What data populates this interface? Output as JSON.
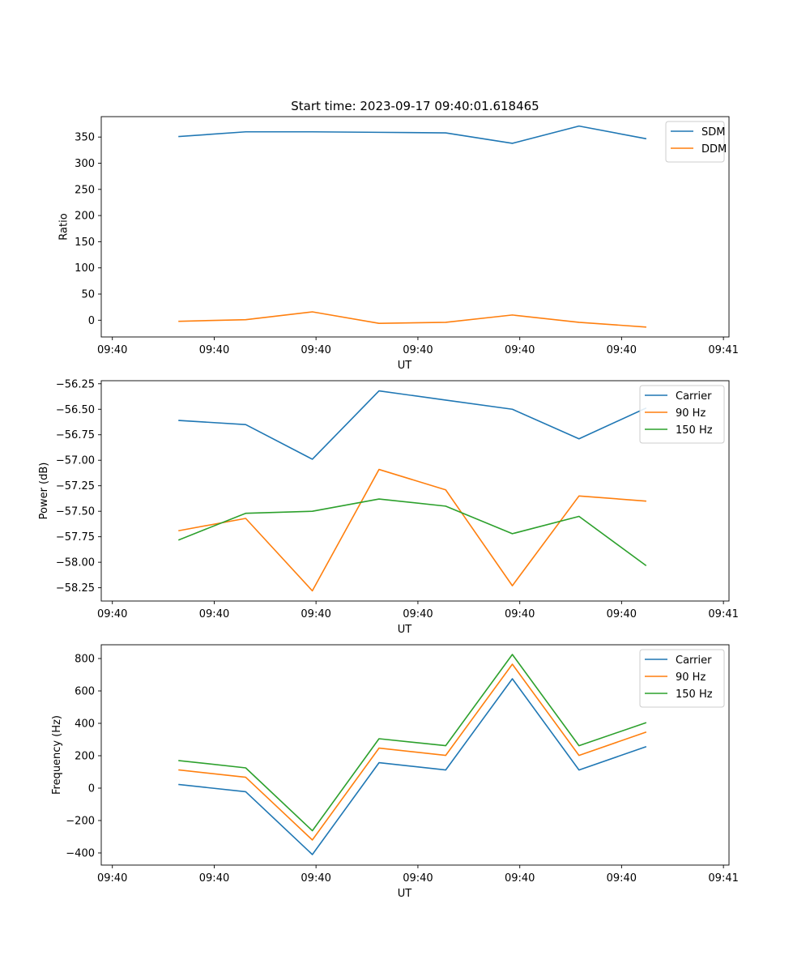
{
  "figure_title": "Start time: 2023-09-17 09:40:01.618465",
  "chart_data": [
    {
      "type": "line",
      "title": "Start time: 2023-09-17 09:40:01.618465",
      "xlabel": "UT",
      "ylabel": "Ratio",
      "x": [
        0.6,
        1.2,
        1.8,
        2.4,
        3.0,
        3.6,
        4.2,
        4.8
      ],
      "xlim": [
        -0.1,
        5.55
      ],
      "x_ticks": [
        0,
        0.917,
        1.833,
        2.75,
        3.667,
        4.583,
        5.5
      ],
      "x_tick_labels": [
        "09:40",
        "09:40",
        "09:40",
        "09:40",
        "09:40",
        "09:40",
        "09:41"
      ],
      "ylim": [
        -32,
        389
      ],
      "y_ticks": [
        0,
        50,
        100,
        150,
        200,
        250,
        300,
        350
      ],
      "y_tick_labels": [
        "0",
        "50",
        "100",
        "150",
        "200",
        "250",
        "300",
        "350"
      ],
      "legend_position": "top-right",
      "series": [
        {
          "name": "SDM",
          "color": "#1f77b4",
          "values": [
            351,
            360,
            360,
            359,
            358,
            338,
            371,
            347
          ]
        },
        {
          "name": "DDM",
          "color": "#ff7f0e",
          "values": [
            -2,
            1,
            16,
            -6,
            -4,
            10,
            -4,
            -13
          ]
        }
      ]
    },
    {
      "type": "line",
      "title": "",
      "xlabel": "UT",
      "ylabel": "Power (dB)",
      "x": [
        0.6,
        1.2,
        1.8,
        2.4,
        3.0,
        3.6,
        4.2,
        4.8
      ],
      "xlim": [
        -0.1,
        5.55
      ],
      "x_ticks": [
        0,
        0.917,
        1.833,
        2.75,
        3.667,
        4.583,
        5.5
      ],
      "x_tick_labels": [
        "09:40",
        "09:40",
        "09:40",
        "09:40",
        "09:40",
        "09:40",
        "09:41"
      ],
      "ylim": [
        -58.38,
        -56.22
      ],
      "y_ticks": [
        -58.25,
        -58.0,
        -57.75,
        -57.5,
        -57.25,
        -57.0,
        -56.75,
        -56.5,
        -56.25
      ],
      "y_tick_labels": [
        "−58.25",
        "−58.00",
        "−57.75",
        "−57.50",
        "−57.25",
        "−57.00",
        "−56.75",
        "−56.50",
        "−56.25"
      ],
      "legend_position": "top-right",
      "series": [
        {
          "name": "Carrier",
          "color": "#1f77b4",
          "values": [
            -56.61,
            -56.65,
            -56.99,
            -56.32,
            -56.41,
            -56.5,
            -56.79,
            -56.49
          ]
        },
        {
          "name": "90 Hz",
          "color": "#ff7f0e",
          "values": [
            -57.69,
            -57.57,
            -58.28,
            -57.09,
            -57.29,
            -58.23,
            -57.35,
            -57.4
          ]
        },
        {
          "name": "150 Hz",
          "color": "#2ca02c",
          "values": [
            -57.78,
            -57.52,
            -57.5,
            -57.38,
            -57.45,
            -57.72,
            -57.55,
            -58.03
          ]
        }
      ]
    },
    {
      "type": "line",
      "title": "",
      "xlabel": "UT",
      "ylabel": "Frequency (Hz)",
      "x": [
        0.6,
        1.2,
        1.8,
        2.4,
        3.0,
        3.6,
        4.2,
        4.8
      ],
      "xlim": [
        -0.1,
        5.55
      ],
      "x_ticks": [
        0,
        0.917,
        1.833,
        2.75,
        3.667,
        4.583,
        5.5
      ],
      "x_tick_labels": [
        "09:40",
        "09:40",
        "09:40",
        "09:40",
        "09:40",
        "09:40",
        "09:41"
      ],
      "ylim": [
        -475,
        885
      ],
      "y_ticks": [
        -400,
        -200,
        0,
        200,
        400,
        600,
        800
      ],
      "y_tick_labels": [
        "−400",
        "−200",
        "0",
        "200",
        "400",
        "600",
        "800"
      ],
      "legend_position": "top-right",
      "series": [
        {
          "name": "Carrier",
          "color": "#1f77b4",
          "values": [
            22,
            -22,
            -410,
            157,
            112,
            675,
            112,
            255
          ]
        },
        {
          "name": "90 Hz",
          "color": "#ff7f0e",
          "values": [
            112,
            67,
            -320,
            247,
            202,
            765,
            202,
            345
          ]
        },
        {
          "name": "150 Hz",
          "color": "#2ca02c",
          "values": [
            170,
            125,
            -263,
            305,
            262,
            825,
            262,
            403
          ]
        }
      ]
    }
  ]
}
